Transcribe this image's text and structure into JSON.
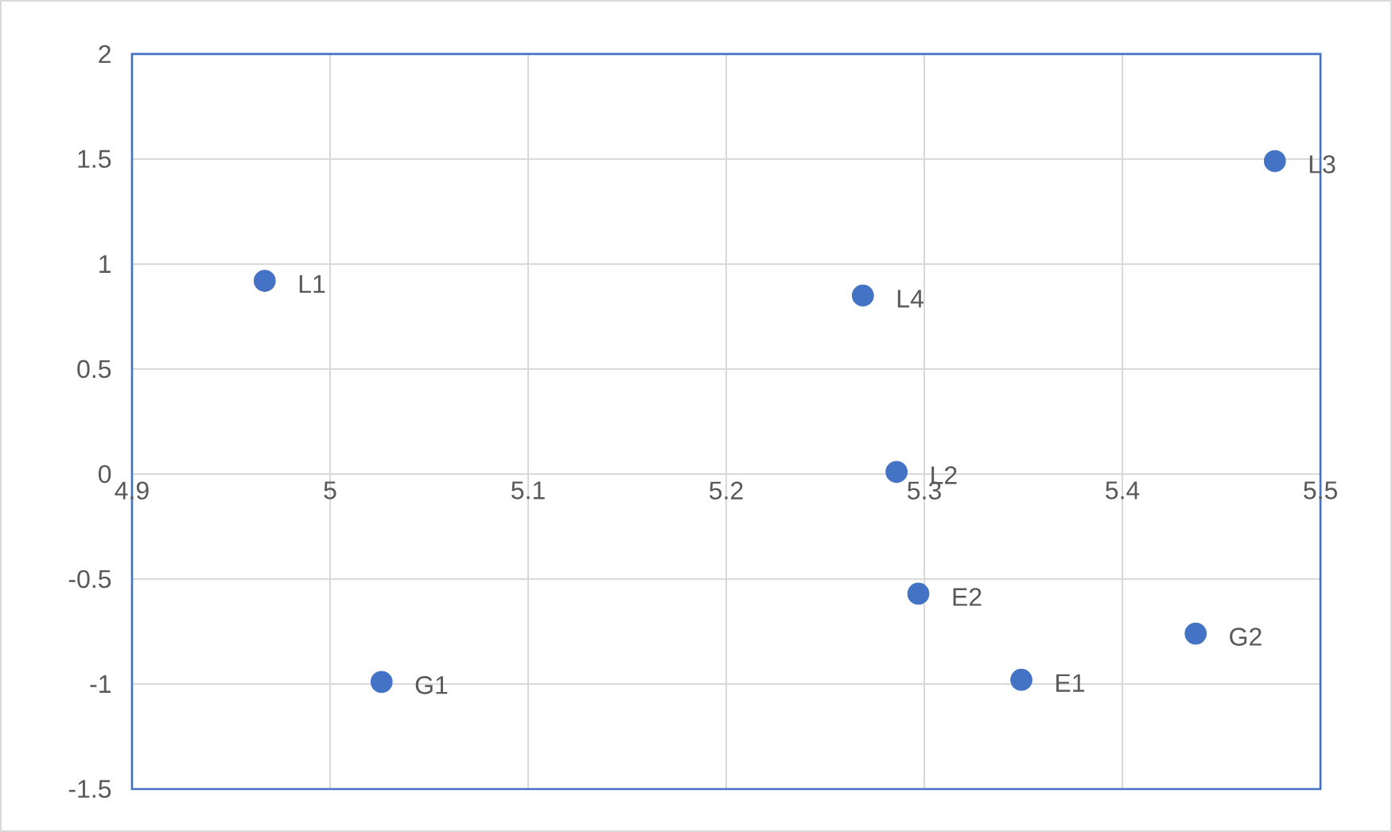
{
  "chart_data": {
    "type": "scatter",
    "series": [
      {
        "color": "#4472c4",
        "x": [
          4.967,
          5.026,
          5.269,
          5.286,
          5.297,
          5.349,
          5.437,
          5.477
        ],
        "values": [
          0.92,
          -0.99,
          0.85,
          0.01,
          -0.57,
          -0.98,
          -0.76,
          1.49
        ],
        "value_labels": [
          "L1",
          "G1",
          "L4",
          "L2",
          "E2",
          "E1",
          "G2",
          "L3"
        ]
      }
    ],
    "xlim": [
      4.9,
      5.5
    ],
    "xticks": [
      4.9,
      5,
      5.1,
      5.2,
      5.3,
      5.4,
      5.5
    ],
    "ylim": [
      -1.5,
      2
    ],
    "yticks": [
      -1.5,
      -1,
      -0.5,
      0,
      0.5,
      1,
      1.5,
      2
    ],
    "grid": true,
    "marker": "circle"
  }
}
